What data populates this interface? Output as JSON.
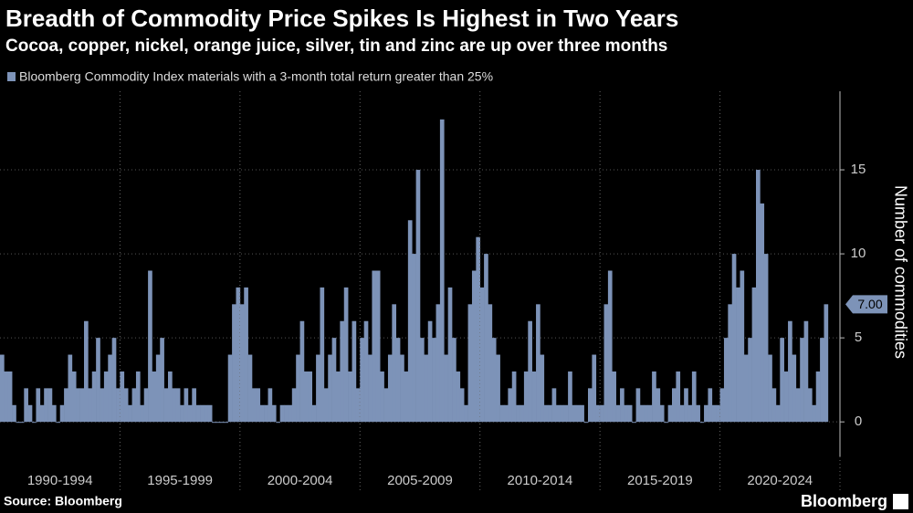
{
  "chart_data": {
    "type": "bar",
    "title": "Breadth of Commodity Price Spikes Is Highest in Two Years",
    "subtitle": "Cocoa, copper, nickel, orange juice, silver, tin and zinc are up over three months",
    "legend_label": "Bloomberg Commodity Index materials with a 3-month total return greater than 25%",
    "y_axis_label": "Number of commodities",
    "source": "Source: Bloomberg",
    "brand": "Bloomberg",
    "color": "#7d93b8",
    "categories": [
      "1990-1994",
      "1995-1999",
      "2000-2004",
      "2005-2009",
      "2010-2014",
      "2015-2019",
      "2020-2024"
    ],
    "values": [
      [
        4,
        3,
        3,
        1,
        0,
        0,
        2,
        1,
        0,
        2,
        1,
        2,
        2,
        1,
        0,
        1,
        2,
        4,
        3,
        2,
        2,
        6,
        2,
        3,
        5,
        2,
        3,
        4,
        5,
        2
      ],
      [
        3,
        2,
        1,
        2,
        3,
        1,
        2,
        9,
        3,
        4,
        5,
        2,
        3,
        2,
        2,
        1,
        2,
        1,
        2,
        1,
        1,
        1,
        1,
        0,
        0,
        0,
        0,
        4,
        7,
        8
      ],
      [
        7,
        8,
        4,
        2,
        2,
        1,
        1,
        2,
        1,
        0,
        1,
        1,
        1,
        2,
        4,
        6,
        3,
        3,
        1,
        4,
        8,
        2,
        4,
        5,
        3,
        6,
        8,
        3,
        6,
        2
      ],
      [
        5,
        6,
        4,
        9,
        9,
        3,
        2,
        4,
        7,
        5,
        4,
        3,
        12,
        10,
        15,
        5,
        4,
        6,
        5,
        7,
        18,
        4,
        8,
        5,
        3,
        2,
        1,
        7,
        9,
        11
      ],
      [
        8,
        10,
        7,
        5,
        4,
        1,
        1,
        2,
        3,
        1,
        1,
        3,
        6,
        3,
        7,
        4,
        1,
        1,
        2,
        1,
        1,
        1,
        3,
        1,
        1,
        1,
        0,
        2,
        4,
        1
      ],
      [
        1,
        7,
        9,
        3,
        1,
        2,
        1,
        1,
        0,
        2,
        1,
        1,
        1,
        3,
        2,
        1,
        0,
        1,
        2,
        3,
        1,
        2,
        1,
        3,
        1,
        0,
        1,
        2,
        1,
        1
      ],
      [
        2,
        5,
        7,
        10,
        8,
        9,
        4,
        5,
        8,
        15,
        13,
        10,
        4,
        2,
        1,
        5,
        3,
        6,
        4,
        2,
        5,
        6,
        2,
        1,
        3,
        5,
        7
      ]
    ],
    "annotation": {
      "value": 7,
      "label": "7.00"
    },
    "ylim": [
      -2,
      20
    ],
    "yticks": [
      0,
      5,
      10,
      15
    ],
    "grid": true
  }
}
